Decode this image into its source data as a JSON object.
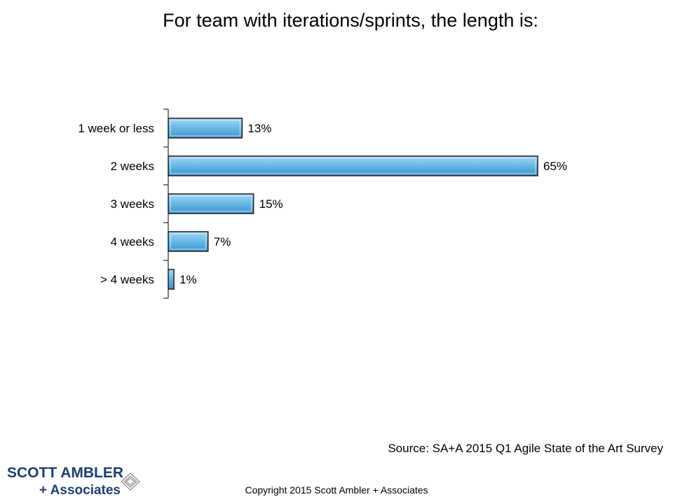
{
  "chart_data": {
    "type": "bar",
    "orientation": "horizontal",
    "title": "For team with iterations/sprints, the length is:",
    "categories": [
      "1 week or less",
      "2 weeks",
      "3 weeks",
      "4 weeks",
      "> 4 weeks"
    ],
    "values": [
      13,
      65,
      15,
      7,
      1
    ],
    "data_labels": [
      "13%",
      "65%",
      "15%",
      "7%",
      "1%"
    ],
    "unit": "%",
    "xlim": [
      0,
      65
    ],
    "grid": false,
    "colors": {
      "bar_fill": "#5aaee0",
      "bar_highlight": "#a9d8f5",
      "bar_edge": "#1f1f1f"
    }
  },
  "source": "Source: SA+A 2015 Q1 Agile State of the Art Survey",
  "copyright": "Copyright 2015 Scott Ambler + Associates",
  "logo": {
    "line1": "SCOTT AMBLER",
    "line2": "+ Associates",
    "color": "#1c3f73"
  }
}
